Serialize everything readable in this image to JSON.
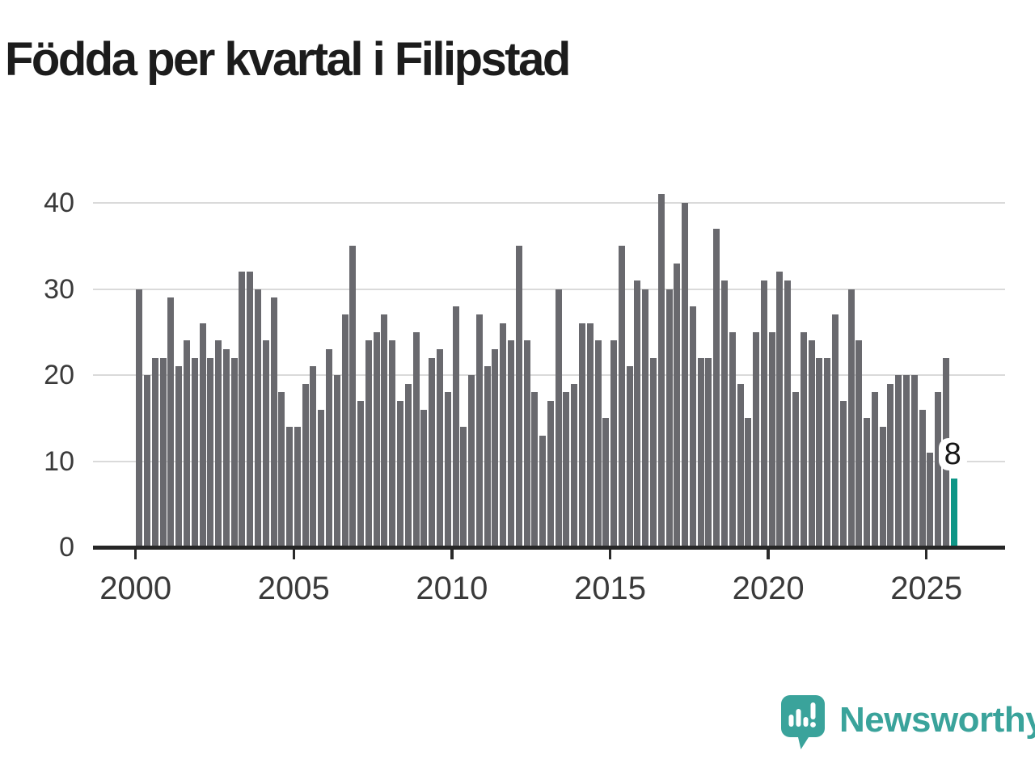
{
  "title": "Födda per kvartal i Filipstad",
  "annotation": {
    "label": "8"
  },
  "logo": {
    "text": "Newsworthy",
    "icon": "newsworthy-speech-bubble-chart-icon"
  },
  "colors": {
    "bar": "#69696e",
    "highlight": "#0e9687",
    "logo_teal": "#3aa39b",
    "grid": "#dadada",
    "axis": "#262626",
    "tick_label": "#3a3a3a",
    "title": "#1c1c1c",
    "annotation_bg": "#ffffff"
  },
  "chart_data": {
    "type": "bar",
    "title": "Födda per kvartal i Filipstad",
    "x_period": "quarterly",
    "x_start_year": 2000,
    "xticks": [
      2000,
      2005,
      2010,
      2015,
      2020,
      2025
    ],
    "yticks": [
      0,
      10,
      20,
      30,
      40
    ],
    "ylim": [
      0,
      42
    ],
    "grid": "horizontal",
    "legend": "none",
    "highlight_last_bar": true,
    "last_value_label": "8",
    "series": [
      {
        "name": "Födda per kvartal",
        "values": [
          30,
          20,
          22,
          22,
          29,
          21,
          24,
          22,
          26,
          22,
          24,
          23,
          22,
          32,
          32,
          30,
          24,
          29,
          18,
          14,
          14,
          19,
          21,
          16,
          23,
          20,
          27,
          35,
          17,
          24,
          25,
          27,
          24,
          17,
          19,
          25,
          16,
          22,
          23,
          18,
          28,
          14,
          20,
          27,
          21,
          23,
          26,
          24,
          35,
          24,
          18,
          13,
          17,
          30,
          18,
          19,
          26,
          26,
          24,
          15,
          24,
          35,
          21,
          31,
          30,
          22,
          41,
          30,
          33,
          40,
          28,
          22,
          22,
          37,
          31,
          25,
          19,
          15,
          25,
          31,
          25,
          32,
          31,
          18,
          25,
          24,
          22,
          22,
          27,
          17,
          30,
          24,
          15,
          18,
          14,
          19,
          20,
          20,
          20,
          16,
          11,
          18,
          22,
          8
        ]
      }
    ]
  }
}
